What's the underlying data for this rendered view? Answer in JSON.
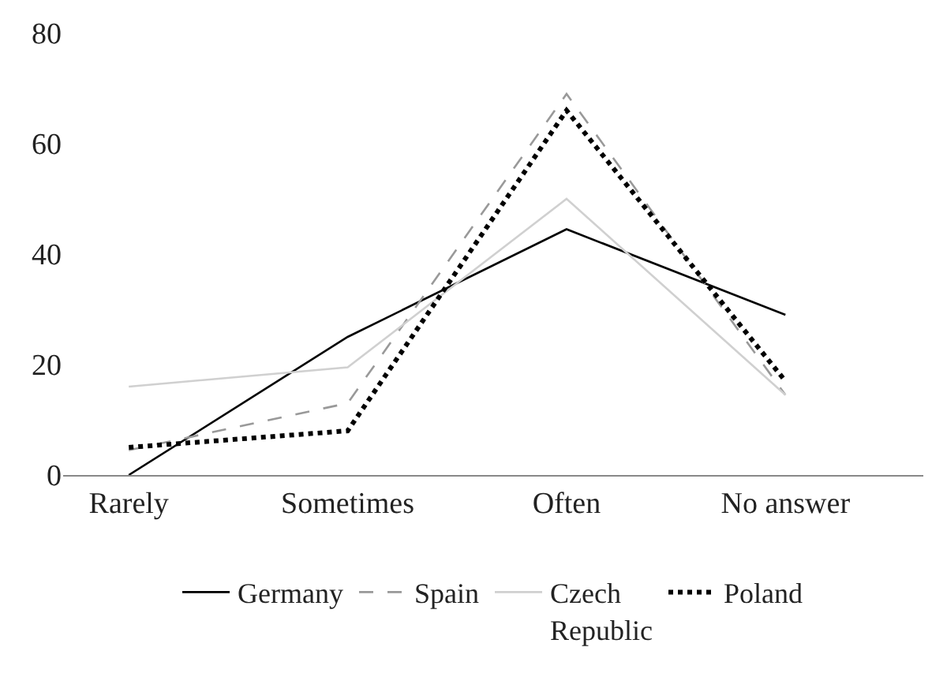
{
  "chart_data": {
    "type": "line",
    "categories": [
      "Rarely",
      "Sometimes",
      "Often",
      "No answer"
    ],
    "series": [
      {
        "name": "Germany",
        "color": "#000000",
        "line_style": "solid",
        "values": [
          0,
          25,
          44.5,
          29
        ]
      },
      {
        "name": "Spain",
        "color": "#999999",
        "line_style": "dashed",
        "values": [
          4.5,
          13,
          69,
          14.5
        ]
      },
      {
        "name": "Czech Republic",
        "color": "#d0d0d0",
        "line_style": "solid",
        "values": [
          16,
          19.5,
          50,
          14.5
        ]
      },
      {
        "name": "Poland",
        "color": "#000000",
        "line_style": "dotted",
        "values": [
          5,
          8,
          66,
          17
        ]
      }
    ],
    "ylim": [
      0,
      80
    ],
    "yticks": [
      0,
      20,
      40,
      60,
      80
    ],
    "legend": "bottom",
    "marker": "none"
  }
}
